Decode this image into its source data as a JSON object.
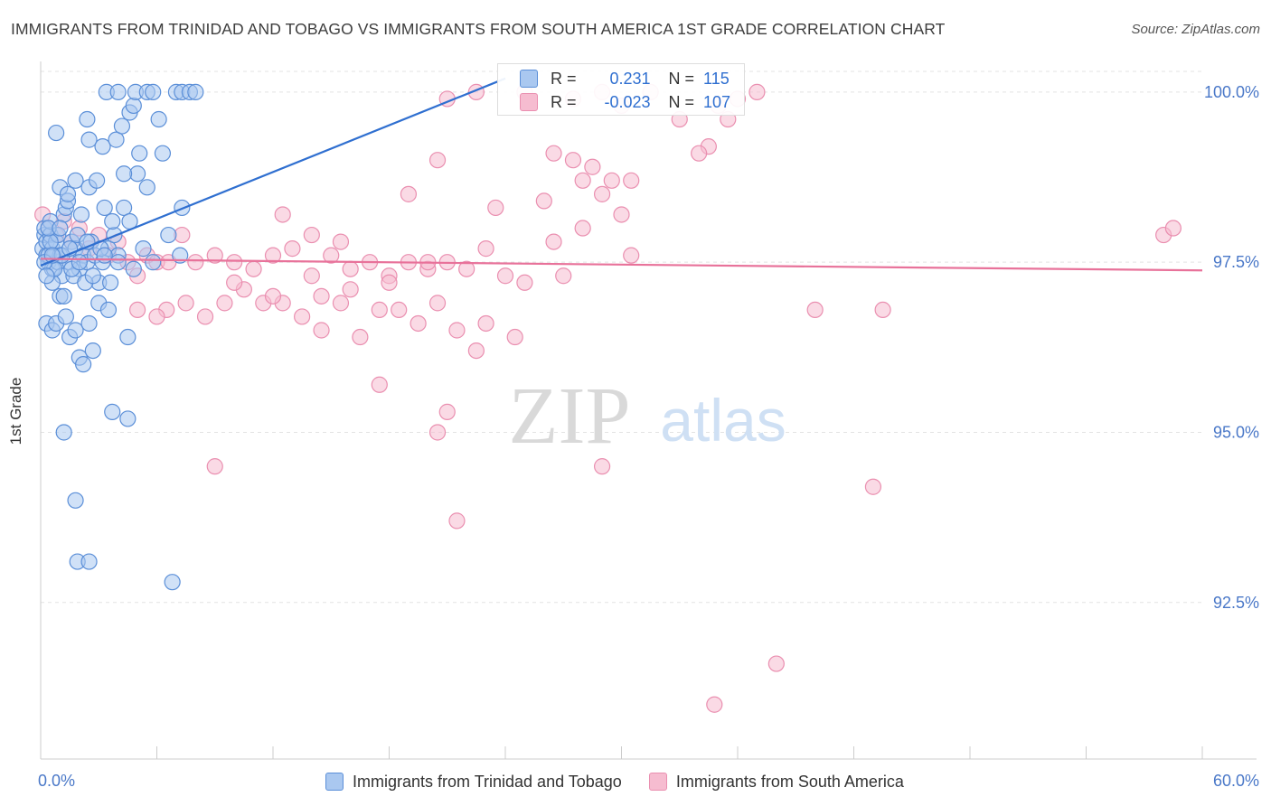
{
  "title": "IMMIGRANTS FROM TRINIDAD AND TOBAGO VS IMMIGRANTS FROM SOUTH AMERICA 1ST GRADE CORRELATION CHART",
  "source": "Source: ZipAtlas.com",
  "watermark": {
    "zip": "ZIP",
    "atlas": "atlas"
  },
  "colors": {
    "blue_fill": "#aac8f0",
    "blue_stroke": "#5b8fd8",
    "blue_line": "#2f6fd0",
    "pink_fill": "#f6bcd0",
    "pink_stroke": "#ea8fb0",
    "pink_line": "#e8729a",
    "tick_label": "#4a78c8",
    "grid": "#e3e3e3"
  },
  "stats": {
    "rows": [
      {
        "series": "blue",
        "r_label": "R =",
        "r_value": "0.231",
        "n_label": "N =",
        "n_value": "115"
      },
      {
        "series": "pink",
        "r_label": "R =",
        "r_value": "-0.023",
        "n_label": "N =",
        "n_value": "107"
      }
    ]
  },
  "legend": {
    "items": [
      {
        "series": "blue",
        "label": "Immigrants from Trinidad and Tobago"
      },
      {
        "series": "pink",
        "label": "Immigrants from South America"
      }
    ]
  },
  "chart_data": {
    "type": "scatter",
    "title": "IMMIGRANTS FROM TRINIDAD AND TOBAGO VS IMMIGRANTS FROM SOUTH AMERICA 1ST GRADE CORRELATION CHART",
    "xlabel": "",
    "ylabel": "1st Grade",
    "xlim": [
      0,
      60
    ],
    "ylim": [
      90.2,
      100.45
    ],
    "x_tick_labels": [
      {
        "value": 0,
        "label": "0.0%"
      },
      {
        "value": 60,
        "label": "60.0%"
      }
    ],
    "y_tick_labels": [
      {
        "value": 100.0,
        "label": "100.0%"
      },
      {
        "value": 97.5,
        "label": "97.5%"
      },
      {
        "value": 95.0,
        "label": "95.0%"
      },
      {
        "value": 92.5,
        "label": "92.5%"
      }
    ],
    "series": [
      {
        "name": "Immigrants from Trinidad and Tobago",
        "color": "blue",
        "trend": {
          "x0": 0.0,
          "y0": 97.45,
          "x1": 24.0,
          "y1": 100.2
        },
        "points": [
          [
            0.1,
            97.7
          ],
          [
            0.2,
            97.9
          ],
          [
            0.2,
            98.0
          ],
          [
            0.3,
            97.6
          ],
          [
            0.3,
            97.8
          ],
          [
            0.4,
            97.5
          ],
          [
            0.5,
            97.9
          ],
          [
            0.5,
            98.1
          ],
          [
            0.6,
            97.7
          ],
          [
            0.6,
            97.4
          ],
          [
            0.7,
            97.6
          ],
          [
            0.8,
            97.8
          ],
          [
            0.9,
            97.5
          ],
          [
            1.0,
            97.6
          ],
          [
            1.1,
            97.3
          ],
          [
            1.2,
            98.2
          ],
          [
            1.3,
            98.3
          ],
          [
            1.4,
            98.4
          ],
          [
            1.5,
            97.5
          ],
          [
            1.6,
            97.8
          ],
          [
            1.8,
            97.7
          ],
          [
            2.0,
            97.4
          ],
          [
            2.2,
            97.6
          ],
          [
            2.4,
            97.5
          ],
          [
            2.6,
            97.8
          ],
          [
            2.8,
            97.6
          ],
          [
            3.0,
            97.2
          ],
          [
            3.2,
            97.5
          ],
          [
            3.5,
            97.7
          ],
          [
            3.8,
            97.9
          ],
          [
            0.3,
            96.6
          ],
          [
            0.6,
            96.5
          ],
          [
            0.8,
            96.6
          ],
          [
            1.0,
            97.0
          ],
          [
            1.3,
            96.7
          ],
          [
            1.5,
            96.4
          ],
          [
            1.8,
            96.5
          ],
          [
            2.0,
            96.1
          ],
          [
            2.2,
            96.0
          ],
          [
            2.5,
            96.6
          ],
          [
            2.7,
            96.2
          ],
          [
            3.0,
            96.9
          ],
          [
            3.5,
            96.8
          ],
          [
            4.5,
            96.4
          ],
          [
            0.6,
            97.2
          ],
          [
            1.2,
            97.0
          ],
          [
            1.7,
            97.3
          ],
          [
            2.3,
            97.2
          ],
          [
            3.6,
            97.2
          ],
          [
            4.0,
            97.6
          ],
          [
            1.0,
            98.6
          ],
          [
            1.4,
            98.5
          ],
          [
            1.8,
            98.7
          ],
          [
            2.1,
            98.2
          ],
          [
            2.5,
            98.6
          ],
          [
            2.9,
            98.7
          ],
          [
            3.3,
            98.3
          ],
          [
            3.7,
            98.1
          ],
          [
            4.3,
            98.3
          ],
          [
            4.6,
            98.1
          ],
          [
            5.3,
            97.7
          ],
          [
            5.8,
            97.5
          ],
          [
            6.6,
            97.9
          ],
          [
            7.2,
            97.6
          ],
          [
            4.0,
            97.5
          ],
          [
            4.8,
            97.4
          ],
          [
            0.8,
            99.4
          ],
          [
            2.5,
            99.3
          ],
          [
            3.2,
            99.2
          ],
          [
            3.9,
            99.3
          ],
          [
            4.2,
            99.5
          ],
          [
            4.6,
            99.7
          ],
          [
            5.1,
            99.1
          ],
          [
            6.1,
            99.6
          ],
          [
            2.4,
            99.6
          ],
          [
            4.8,
            99.8
          ],
          [
            3.4,
            100.0
          ],
          [
            4.0,
            100.0
          ],
          [
            4.9,
            100.0
          ],
          [
            5.5,
            100.0
          ],
          [
            5.8,
            100.0
          ],
          [
            7.0,
            100.0
          ],
          [
            7.3,
            100.0
          ],
          [
            7.7,
            100.0
          ],
          [
            8.0,
            100.0
          ],
          [
            6.3,
            99.1
          ],
          [
            5.5,
            98.6
          ],
          [
            5.0,
            98.8
          ],
          [
            7.3,
            98.3
          ],
          [
            4.3,
            98.8
          ],
          [
            1.2,
            95.0
          ],
          [
            3.7,
            95.3
          ],
          [
            4.5,
            95.2
          ],
          [
            1.8,
            94.0
          ],
          [
            1.9,
            93.1
          ],
          [
            2.5,
            93.1
          ],
          [
            6.8,
            92.8
          ],
          [
            0.4,
            97.6
          ],
          [
            0.7,
            97.4
          ],
          [
            0.9,
            97.9
          ],
          [
            1.1,
            97.6
          ],
          [
            1.6,
            97.4
          ],
          [
            2.7,
            97.3
          ],
          [
            3.1,
            97.7
          ],
          [
            0.5,
            97.8
          ],
          [
            0.2,
            97.5
          ],
          [
            1.5,
            97.7
          ],
          [
            2.0,
            97.5
          ],
          [
            0.4,
            98.0
          ],
          [
            1.0,
            98.0
          ],
          [
            0.6,
            97.6
          ],
          [
            1.9,
            97.9
          ],
          [
            2.4,
            97.8
          ],
          [
            3.3,
            97.6
          ],
          [
            0.3,
            97.3
          ]
        ]
      },
      {
        "name": "Immigrants from South America",
        "color": "pink",
        "trend": {
          "x0": 0.0,
          "y0": 97.55,
          "x1": 60.0,
          "y1": 97.38
        },
        "points": [
          [
            0.1,
            98.2
          ],
          [
            0.4,
            98.0
          ],
          [
            0.8,
            97.9
          ],
          [
            1.2,
            98.1
          ],
          [
            1.6,
            97.8
          ],
          [
            2.0,
            98.0
          ],
          [
            2.5,
            97.7
          ],
          [
            3.0,
            97.9
          ],
          [
            3.5,
            97.6
          ],
          [
            4.0,
            97.8
          ],
          [
            4.5,
            97.5
          ],
          [
            5.0,
            97.3
          ],
          [
            5.5,
            97.6
          ],
          [
            6.0,
            97.5
          ],
          [
            6.6,
            97.5
          ],
          [
            7.3,
            97.9
          ],
          [
            8.0,
            97.5
          ],
          [
            9.0,
            97.6
          ],
          [
            10.0,
            97.5
          ],
          [
            11.0,
            97.4
          ],
          [
            12.0,
            97.6
          ],
          [
            13.0,
            97.7
          ],
          [
            14.0,
            97.3
          ],
          [
            15.0,
            97.6
          ],
          [
            16.0,
            97.4
          ],
          [
            17.0,
            97.5
          ],
          [
            18.0,
            97.3
          ],
          [
            19.0,
            97.5
          ],
          [
            20.0,
            97.4
          ],
          [
            21.0,
            97.5
          ],
          [
            22.0,
            97.4
          ],
          [
            23.0,
            97.7
          ],
          [
            24.0,
            97.3
          ],
          [
            6.5,
            96.8
          ],
          [
            7.5,
            96.9
          ],
          [
            8.5,
            96.7
          ],
          [
            9.5,
            96.9
          ],
          [
            10.5,
            97.1
          ],
          [
            11.5,
            96.9
          ],
          [
            12.5,
            96.9
          ],
          [
            13.5,
            96.7
          ],
          [
            14.5,
            96.5
          ],
          [
            15.5,
            96.9
          ],
          [
            16.5,
            96.4
          ],
          [
            17.5,
            96.8
          ],
          [
            18.5,
            96.8
          ],
          [
            19.5,
            96.6
          ],
          [
            20.5,
            96.9
          ],
          [
            21.5,
            96.5
          ],
          [
            22.5,
            96.2
          ],
          [
            23.0,
            96.6
          ],
          [
            24.5,
            96.4
          ],
          [
            5.0,
            96.8
          ],
          [
            6.0,
            96.7
          ],
          [
            17.5,
            95.7
          ],
          [
            21.0,
            95.3
          ],
          [
            20.5,
            95.0
          ],
          [
            9.0,
            94.5
          ],
          [
            29.0,
            94.5
          ],
          [
            43.0,
            94.2
          ],
          [
            21.5,
            93.7
          ],
          [
            38.0,
            91.6
          ],
          [
            34.8,
            91.0
          ],
          [
            40.0,
            96.8
          ],
          [
            43.5,
            96.8
          ],
          [
            58.0,
            97.9
          ],
          [
            58.5,
            98.0
          ],
          [
            19.0,
            98.5
          ],
          [
            20.5,
            99.0
          ],
          [
            21.0,
            99.9
          ],
          [
            22.5,
            100.0
          ],
          [
            25.0,
            100.0
          ],
          [
            27.5,
            99.9
          ],
          [
            29.0,
            100.0
          ],
          [
            30.0,
            99.8
          ],
          [
            31.5,
            100.0
          ],
          [
            33.0,
            99.6
          ],
          [
            34.5,
            99.2
          ],
          [
            35.0,
            99.8
          ],
          [
            36.0,
            99.9
          ],
          [
            37.0,
            100.0
          ],
          [
            26.5,
            99.1
          ],
          [
            27.5,
            99.0
          ],
          [
            28.0,
            98.7
          ],
          [
            28.5,
            98.9
          ],
          [
            29.0,
            98.5
          ],
          [
            29.5,
            98.7
          ],
          [
            30.0,
            98.2
          ],
          [
            30.5,
            98.7
          ],
          [
            34.0,
            99.1
          ],
          [
            35.5,
            99.6
          ],
          [
            12.5,
            98.2
          ],
          [
            14.0,
            97.9
          ],
          [
            15.5,
            97.8
          ],
          [
            20.0,
            97.5
          ],
          [
            23.5,
            98.3
          ],
          [
            26.0,
            98.4
          ],
          [
            26.5,
            97.8
          ],
          [
            28.0,
            98.0
          ],
          [
            30.5,
            97.6
          ],
          [
            10.0,
            97.2
          ],
          [
            12.0,
            97.0
          ],
          [
            14.5,
            97.0
          ],
          [
            16.0,
            97.1
          ],
          [
            18.0,
            97.2
          ],
          [
            25.0,
            97.2
          ],
          [
            27.0,
            97.3
          ]
        ]
      }
    ]
  }
}
